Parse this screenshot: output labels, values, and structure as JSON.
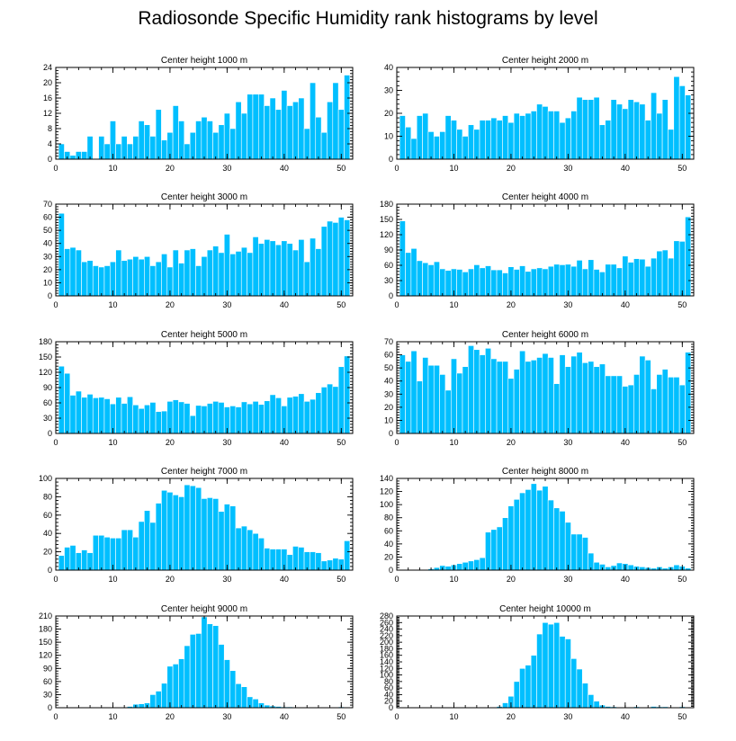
{
  "title": "Radiosonde Specific Humidity rank histograms by level",
  "colors": {
    "bar": "#00bfff",
    "background": "#ffffff",
    "axis": "#000000"
  },
  "chart_data": [
    {
      "type": "bar",
      "title": "Center height 1000 m",
      "xlim": [
        0,
        52
      ],
      "ylim": [
        0,
        24
      ],
      "xticks": [
        0,
        10,
        20,
        30,
        40,
        50
      ],
      "yticks": [
        0,
        4,
        8,
        12,
        16,
        20,
        24
      ],
      "x": [
        1,
        2,
        3,
        4,
        5,
        6,
        7,
        8,
        9,
        10,
        11,
        12,
        13,
        14,
        15,
        16,
        17,
        18,
        19,
        20,
        21,
        22,
        23,
        24,
        25,
        26,
        27,
        28,
        29,
        30,
        31,
        32,
        33,
        34,
        35,
        36,
        37,
        38,
        39,
        40,
        41,
        42,
        43,
        44,
        45,
        46,
        47,
        48,
        49,
        50,
        51
      ],
      "values": [
        4,
        2,
        1,
        2,
        2,
        6,
        0,
        6,
        4,
        10,
        4,
        6,
        4,
        6,
        10,
        9,
        6,
        13,
        5,
        7,
        14,
        10,
        4,
        7,
        10,
        11,
        10,
        7,
        9,
        12,
        8,
        15,
        12,
        17,
        17,
        17,
        14,
        16,
        13,
        18,
        14,
        15,
        16,
        8,
        20,
        11,
        7,
        15,
        20,
        13,
        22
      ]
    },
    {
      "type": "bar",
      "title": "Center height 2000 m",
      "xlim": [
        0,
        52
      ],
      "ylim": [
        0,
        40
      ],
      "xticks": [
        0,
        10,
        20,
        30,
        40,
        50
      ],
      "yticks": [
        0,
        10,
        20,
        30,
        40
      ],
      "x": [
        1,
        2,
        3,
        4,
        5,
        6,
        7,
        8,
        9,
        10,
        11,
        12,
        13,
        14,
        15,
        16,
        17,
        18,
        19,
        20,
        21,
        22,
        23,
        24,
        25,
        26,
        27,
        28,
        29,
        30,
        31,
        32,
        33,
        34,
        35,
        36,
        37,
        38,
        39,
        40,
        41,
        42,
        43,
        44,
        45,
        46,
        47,
        48,
        49,
        50,
        51
      ],
      "values": [
        19,
        14,
        9,
        19,
        20,
        12,
        10,
        12,
        19,
        17,
        13,
        10,
        15,
        13,
        17,
        17,
        18,
        17,
        19,
        16,
        20,
        19,
        20,
        21,
        24,
        23,
        21,
        21,
        16,
        18,
        21,
        27,
        26,
        26,
        27,
        15,
        17,
        26,
        24,
        22,
        26,
        25,
        24,
        17,
        29,
        20,
        26,
        13,
        36,
        32,
        28
      ]
    },
    {
      "type": "bar",
      "title": "Center height 3000 m",
      "xlim": [
        0,
        52
      ],
      "ylim": [
        0,
        70
      ],
      "xticks": [
        0,
        10,
        20,
        30,
        40,
        50
      ],
      "yticks": [
        0,
        10,
        20,
        30,
        40,
        50,
        60,
        70
      ],
      "x": [
        1,
        2,
        3,
        4,
        5,
        6,
        7,
        8,
        9,
        10,
        11,
        12,
        13,
        14,
        15,
        16,
        17,
        18,
        19,
        20,
        21,
        22,
        23,
        24,
        25,
        26,
        27,
        28,
        29,
        30,
        31,
        32,
        33,
        34,
        35,
        36,
        37,
        38,
        39,
        40,
        41,
        42,
        43,
        44,
        45,
        46,
        47,
        48,
        49,
        50,
        51
      ],
      "values": [
        63,
        36,
        37,
        35,
        26,
        27,
        23,
        22,
        23,
        26,
        35,
        27,
        28,
        30,
        28,
        30,
        23,
        26,
        32,
        22,
        35,
        25,
        35,
        36,
        23,
        30,
        35,
        38,
        33,
        47,
        32,
        34,
        37,
        33,
        45,
        40,
        43,
        42,
        39,
        42,
        40,
        35,
        43,
        26,
        44,
        36,
        53,
        57,
        56,
        60,
        58
      ]
    },
    {
      "type": "bar",
      "title": "Center height 4000 m",
      "xlim": [
        0,
        52
      ],
      "ylim": [
        0,
        180
      ],
      "xticks": [
        0,
        10,
        20,
        30,
        40,
        50
      ],
      "yticks": [
        0,
        30,
        60,
        90,
        120,
        150,
        180
      ],
      "x": [
        1,
        2,
        3,
        4,
        5,
        6,
        7,
        8,
        9,
        10,
        11,
        12,
        13,
        14,
        15,
        16,
        17,
        18,
        19,
        20,
        21,
        22,
        23,
        24,
        25,
        26,
        27,
        28,
        29,
        30,
        31,
        32,
        33,
        34,
        35,
        36,
        37,
        38,
        39,
        40,
        41,
        42,
        43,
        44,
        45,
        46,
        47,
        48,
        49,
        50,
        51
      ],
      "values": [
        147,
        85,
        93,
        69,
        65,
        61,
        67,
        53,
        50,
        53,
        52,
        47,
        53,
        61,
        55,
        59,
        51,
        51,
        45,
        57,
        52,
        59,
        48,
        53,
        55,
        53,
        58,
        62,
        61,
        62,
        58,
        70,
        53,
        71,
        52,
        47,
        62,
        62,
        55,
        78,
        66,
        73,
        72,
        58,
        74,
        88,
        90,
        74,
        108,
        107,
        155
      ]
    },
    {
      "type": "bar",
      "title": "Center height 5000 m",
      "xlim": [
        0,
        52
      ],
      "ylim": [
        0,
        180
      ],
      "xticks": [
        0,
        10,
        20,
        30,
        40,
        50
      ],
      "yticks": [
        0,
        30,
        60,
        90,
        120,
        150,
        180
      ],
      "x": [
        1,
        2,
        3,
        4,
        5,
        6,
        7,
        8,
        9,
        10,
        11,
        12,
        13,
        14,
        15,
        16,
        17,
        18,
        19,
        20,
        21,
        22,
        23,
        24,
        25,
        26,
        27,
        28,
        29,
        30,
        31,
        32,
        33,
        34,
        35,
        36,
        37,
        38,
        39,
        40,
        41,
        42,
        43,
        44,
        45,
        46,
        47,
        48,
        49,
        50,
        51
      ],
      "values": [
        132,
        118,
        75,
        83,
        71,
        77,
        70,
        71,
        68,
        58,
        71,
        59,
        72,
        56,
        49,
        56,
        61,
        43,
        44,
        63,
        66,
        62,
        59,
        35,
        55,
        54,
        59,
        63,
        61,
        52,
        54,
        52,
        62,
        58,
        63,
        57,
        64,
        76,
        70,
        54,
        71,
        73,
        78,
        63,
        67,
        80,
        91,
        97,
        92,
        131,
        152
      ]
    },
    {
      "type": "bar",
      "title": "Center height 6000 m",
      "xlim": [
        0,
        52
      ],
      "ylim": [
        0,
        70
      ],
      "xticks": [
        0,
        10,
        20,
        30,
        40,
        50
      ],
      "yticks": [
        0,
        10,
        20,
        30,
        40,
        50,
        60,
        70
      ],
      "x": [
        1,
        2,
        3,
        4,
        5,
        6,
        7,
        8,
        9,
        10,
        11,
        12,
        13,
        14,
        15,
        16,
        17,
        18,
        19,
        20,
        21,
        22,
        23,
        24,
        25,
        26,
        27,
        28,
        29,
        30,
        31,
        32,
        33,
        34,
        35,
        36,
        37,
        38,
        39,
        40,
        41,
        42,
        43,
        44,
        45,
        46,
        47,
        48,
        49,
        50,
        51
      ],
      "values": [
        60,
        55,
        63,
        40,
        58,
        52,
        52,
        45,
        33,
        57,
        46,
        51,
        67,
        64,
        60,
        65,
        57,
        55,
        55,
        42,
        49,
        63,
        55,
        56,
        58,
        61,
        58,
        38,
        60,
        51,
        59,
        62,
        54,
        55,
        51,
        53,
        44,
        44,
        44,
        36,
        37,
        45,
        59,
        56,
        34,
        45,
        49,
        43,
        43,
        37,
        62
      ]
    },
    {
      "type": "bar",
      "title": "Center height 7000 m",
      "xlim": [
        0,
        52
      ],
      "ylim": [
        0,
        100
      ],
      "xticks": [
        0,
        10,
        20,
        30,
        40,
        50
      ],
      "yticks": [
        0,
        20,
        40,
        60,
        80,
        100
      ],
      "x": [
        1,
        2,
        3,
        4,
        5,
        6,
        7,
        8,
        9,
        10,
        11,
        12,
        13,
        14,
        15,
        16,
        17,
        18,
        19,
        20,
        21,
        22,
        23,
        24,
        25,
        26,
        27,
        28,
        29,
        30,
        31,
        32,
        33,
        34,
        35,
        36,
        37,
        38,
        39,
        40,
        41,
        42,
        43,
        44,
        45,
        46,
        47,
        48,
        49,
        50,
        51
      ],
      "values": [
        16,
        25,
        27,
        19,
        22,
        19,
        38,
        38,
        36,
        35,
        35,
        44,
        44,
        36,
        53,
        65,
        52,
        73,
        87,
        85,
        82,
        80,
        93,
        92,
        90,
        78,
        79,
        78,
        64,
        72,
        70,
        46,
        48,
        44,
        40,
        35,
        24,
        23,
        23,
        23,
        17,
        26,
        25,
        20,
        20,
        19,
        10,
        11,
        13,
        12,
        32
      ]
    },
    {
      "type": "bar",
      "title": "Center height 8000 m",
      "xlim": [
        0,
        52
      ],
      "ylim": [
        0,
        140
      ],
      "xticks": [
        0,
        10,
        20,
        30,
        40,
        50
      ],
      "yticks": [
        0,
        20,
        40,
        60,
        80,
        100,
        120,
        140
      ],
      "x": [
        1,
        2,
        3,
        4,
        5,
        6,
        7,
        8,
        9,
        10,
        11,
        12,
        13,
        14,
        15,
        16,
        17,
        18,
        19,
        20,
        21,
        22,
        23,
        24,
        25,
        26,
        27,
        28,
        29,
        30,
        31,
        32,
        33,
        34,
        35,
        36,
        37,
        38,
        39,
        40,
        41,
        42,
        43,
        44,
        45,
        46,
        47,
        48,
        49,
        50,
        51
      ],
      "values": [
        0,
        0,
        0,
        0,
        0,
        2,
        4,
        7,
        6,
        8,
        10,
        12,
        14,
        16,
        19,
        58,
        62,
        66,
        80,
        98,
        108,
        118,
        123,
        132,
        122,
        128,
        107,
        95,
        90,
        73,
        55,
        55,
        50,
        26,
        12,
        9,
        5,
        7,
        11,
        10,
        8,
        6,
        5,
        4,
        3,
        5,
        3,
        5,
        8,
        6,
        3
      ]
    },
    {
      "type": "bar",
      "title": "Center height 9000 m",
      "xlim": [
        0,
        52
      ],
      "ylim": [
        0,
        210
      ],
      "xticks": [
        0,
        10,
        20,
        30,
        40,
        50
      ],
      "yticks": [
        0,
        30,
        60,
        90,
        120,
        150,
        180,
        210
      ],
      "x": [
        1,
        2,
        3,
        4,
        5,
        6,
        7,
        8,
        9,
        10,
        11,
        12,
        13,
        14,
        15,
        16,
        17,
        18,
        19,
        20,
        21,
        22,
        23,
        24,
        25,
        26,
        27,
        28,
        29,
        30,
        31,
        32,
        33,
        34,
        35,
        36,
        37,
        38,
        39,
        40,
        41,
        42,
        43,
        44,
        45,
        46,
        47,
        48,
        49,
        50,
        51
      ],
      "values": [
        0,
        0,
        0,
        0,
        0,
        0,
        0,
        0,
        0,
        0,
        0,
        1,
        3,
        8,
        9,
        11,
        30,
        38,
        56,
        95,
        100,
        112,
        142,
        168,
        170,
        208,
        192,
        188,
        145,
        110,
        85,
        55,
        48,
        25,
        20,
        11,
        6,
        4,
        3,
        2,
        2,
        1,
        1,
        1,
        0,
        1,
        1,
        0,
        0,
        2,
        1
      ]
    },
    {
      "type": "bar",
      "title": "Center height 10000 m",
      "xlim": [
        0,
        52
      ],
      "ylim": [
        0,
        280
      ],
      "xticks": [
        0,
        10,
        20,
        30,
        40,
        50
      ],
      "yticks": [
        0,
        20,
        40,
        60,
        80,
        100,
        120,
        140,
        160,
        180,
        200,
        220,
        240,
        260,
        280
      ],
      "x": [
        1,
        2,
        3,
        4,
        5,
        6,
        7,
        8,
        9,
        10,
        11,
        12,
        13,
        14,
        15,
        16,
        17,
        18,
        19,
        20,
        21,
        22,
        23,
        24,
        25,
        26,
        27,
        28,
        29,
        30,
        31,
        32,
        33,
        34,
        35,
        36,
        37,
        38,
        39,
        40,
        41,
        42,
        43,
        44,
        45,
        46,
        47,
        48,
        49,
        50,
        51
      ],
      "values": [
        0,
        0,
        0,
        0,
        0,
        0,
        0,
        0,
        0,
        0,
        0,
        0,
        0,
        0,
        0,
        0,
        0,
        4,
        15,
        35,
        80,
        120,
        130,
        160,
        225,
        260,
        255,
        260,
        218,
        210,
        150,
        118,
        75,
        40,
        20,
        8,
        4,
        3,
        2,
        2,
        1,
        3,
        2,
        1,
        4,
        3,
        3,
        2,
        1,
        3,
        1
      ]
    }
  ]
}
